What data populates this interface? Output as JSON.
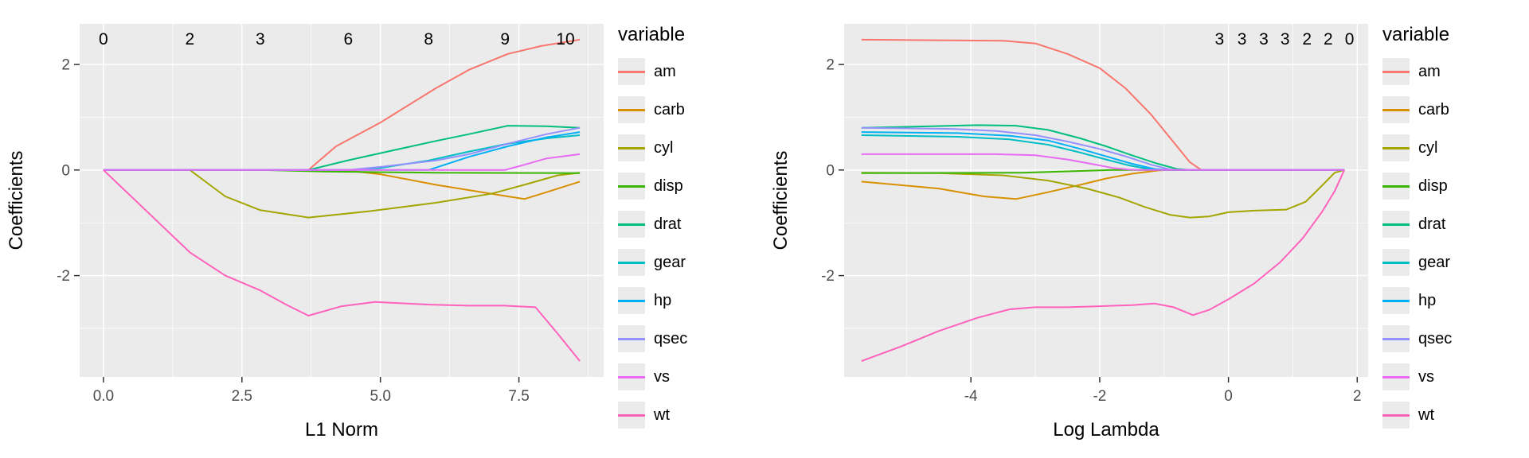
{
  "theme": {
    "panel_bg": "#EBEBEB",
    "grid_major": "#FFFFFF",
    "grid_minor": "#FFFFFF",
    "axis_text": "#4D4D4D",
    "tick_mark": "#333333",
    "title_text": "#000000",
    "legend_key_bg": "#EBEBEB"
  },
  "chart_data": [
    {
      "type": "line",
      "title": "",
      "xlabel": "L1 Norm",
      "ylabel": "Coefficients",
      "xlim": [
        -0.43,
        9.03
      ],
      "ylim": [
        -3.92,
        2.77
      ],
      "xticks": {
        "values": [
          0,
          2.5,
          5,
          7.5
        ],
        "labels": [
          "0.0",
          "2.5",
          "5.0",
          "7.5"
        ]
      },
      "yticks": {
        "values": [
          -2,
          0,
          2
        ],
        "labels": [
          "-2",
          "0",
          "2"
        ]
      },
      "top_labels": [
        {
          "x": 0.0,
          "text": "0"
        },
        {
          "x": 1.56,
          "text": "2"
        },
        {
          "x": 2.83,
          "text": "3"
        },
        {
          "x": 4.42,
          "text": "6"
        },
        {
          "x": 5.87,
          "text": "8"
        },
        {
          "x": 7.25,
          "text": "9"
        },
        {
          "x": 8.34,
          "text": "10"
        }
      ],
      "legend_title": "variable",
      "series": [
        {
          "name": "am",
          "color": "#F8766D",
          "x": [
            0,
            3.7,
            4.2,
            5,
            6,
            6.6,
            7.3,
            7.9,
            8.6
          ],
          "y": [
            0,
            0,
            0.45,
            0.9,
            1.55,
            1.9,
            2.2,
            2.35,
            2.47
          ]
        },
        {
          "name": "carb",
          "color": "#D89000",
          "x": [
            0,
            4.3,
            5,
            6,
            6.6,
            7.3,
            7.6,
            8.0,
            8.6
          ],
          "y": [
            0,
            0,
            -0.08,
            -0.28,
            -0.38,
            -0.5,
            -0.55,
            -0.42,
            -0.22
          ]
        },
        {
          "name": "cyl",
          "color": "#A3A500",
          "x": [
            0,
            1.56,
            2.2,
            2.83,
            3.7,
            4.8,
            6,
            7,
            7.6,
            8.2,
            8.6
          ],
          "y": [
            0,
            0,
            -0.5,
            -0.76,
            -0.9,
            -0.78,
            -0.62,
            -0.45,
            -0.28,
            -0.1,
            -0.05
          ]
        },
        {
          "name": "disp",
          "color": "#39B600",
          "x": [
            0,
            2.83,
            4,
            6,
            8.6
          ],
          "y": [
            0,
            0,
            -0.03,
            -0.05,
            -0.06
          ]
        },
        {
          "name": "drat",
          "color": "#00BF7D",
          "x": [
            0,
            3.7,
            4.4,
            5,
            6,
            6.6,
            7.3,
            8.0,
            8.6
          ],
          "y": [
            0,
            0,
            0.18,
            0.32,
            0.55,
            0.68,
            0.84,
            0.83,
            0.8
          ]
        },
        {
          "name": "gear",
          "color": "#00BFC4",
          "x": [
            0,
            4.42,
            5,
            5.87,
            6.6,
            7.3,
            8.0,
            8.6
          ],
          "y": [
            0,
            0,
            0.04,
            0.18,
            0.35,
            0.5,
            0.6,
            0.66
          ]
        },
        {
          "name": "hp",
          "color": "#00B0F6",
          "x": [
            0,
            5.87,
            6.6,
            7.3,
            8.0,
            8.6
          ],
          "y": [
            0,
            0,
            0.25,
            0.45,
            0.62,
            0.72
          ]
        },
        {
          "name": "qsec",
          "color": "#9590FF",
          "x": [
            0,
            4.42,
            5,
            6,
            6.6,
            7.3,
            8.0,
            8.6
          ],
          "y": [
            0,
            0,
            0.06,
            0.18,
            0.3,
            0.5,
            0.68,
            0.8
          ]
        },
        {
          "name": "vs",
          "color": "#E76BF3",
          "x": [
            0,
            7.25,
            7.6,
            8.0,
            8.6
          ],
          "y": [
            0,
            0,
            0.1,
            0.22,
            0.3
          ]
        },
        {
          "name": "wt",
          "color": "#FF62BC",
          "x": [
            0,
            0.5,
            1.0,
            1.56,
            2.2,
            2.83,
            3.3,
            3.7,
            4.3,
            4.9,
            5.9,
            6.6,
            7.25,
            7.8,
            8.2,
            8.6
          ],
          "y": [
            0,
            -0.5,
            -1.0,
            -1.56,
            -2.0,
            -2.28,
            -2.55,
            -2.76,
            -2.58,
            -2.5,
            -2.55,
            -2.57,
            -2.57,
            -2.6,
            -3.1,
            -3.62
          ]
        }
      ]
    },
    {
      "type": "line",
      "title": "",
      "xlabel": "Log Lambda",
      "ylabel": "Coefficients",
      "xlim": [
        -5.97,
        2.17
      ],
      "ylim": [
        -3.92,
        2.77
      ],
      "xticks": {
        "values": [
          -4,
          -2,
          0,
          2
        ],
        "labels": [
          "-4",
          "-2",
          "0",
          "2"
        ]
      },
      "yticks": {
        "values": [
          -2,
          0,
          2
        ],
        "labels": [
          "-2",
          "0",
          "2"
        ]
      },
      "top_labels": [
        {
          "x": -0.14,
          "text": "3"
        },
        {
          "x": 0.21,
          "text": "3"
        },
        {
          "x": 0.55,
          "text": "3"
        },
        {
          "x": 0.88,
          "text": "3"
        },
        {
          "x": 1.22,
          "text": "2"
        },
        {
          "x": 1.55,
          "text": "2"
        },
        {
          "x": 1.88,
          "text": "0"
        }
      ],
      "legend_title": "variable",
      "series": [
        {
          "name": "am",
          "color": "#F8766D",
          "x": [
            -5.7,
            -3.5,
            -3,
            -2.5,
            -2,
            -1.6,
            -1.2,
            -0.9,
            -0.6,
            -0.42,
            1.8
          ],
          "y": [
            2.47,
            2.45,
            2.4,
            2.2,
            1.93,
            1.55,
            1.05,
            0.6,
            0.15,
            0,
            0
          ]
        },
        {
          "name": "carb",
          "color": "#D89000",
          "x": [
            -5.7,
            -4.5,
            -3.8,
            -3.3,
            -2.8,
            -2.3,
            -1.9,
            -1.5,
            -1.1,
            -0.95,
            1.8
          ],
          "y": [
            -0.22,
            -0.35,
            -0.5,
            -0.55,
            -0.42,
            -0.28,
            -0.16,
            -0.07,
            -0.01,
            0,
            0
          ]
        },
        {
          "name": "cyl",
          "color": "#A3A500",
          "x": [
            -5.7,
            -4.5,
            -3.5,
            -2.8,
            -2.2,
            -1.7,
            -1.3,
            -0.9,
            -0.6,
            -0.3,
            0,
            0.4,
            0.9,
            1.2,
            1.45,
            1.65,
            1.8
          ],
          "y": [
            -0.05,
            -0.06,
            -0.1,
            -0.2,
            -0.35,
            -0.52,
            -0.7,
            -0.85,
            -0.9,
            -0.88,
            -0.8,
            -0.77,
            -0.75,
            -0.6,
            -0.3,
            -0.05,
            0
          ]
        },
        {
          "name": "disp",
          "color": "#39B600",
          "x": [
            -5.7,
            -3.2,
            -2.6,
            -2.1,
            -1.8,
            1.8
          ],
          "y": [
            -0.06,
            -0.05,
            -0.03,
            -0.01,
            0,
            0
          ]
        },
        {
          "name": "drat",
          "color": "#00BF7D",
          "x": [
            -5.7,
            -4.6,
            -3.9,
            -3.3,
            -2.8,
            -2.3,
            -1.9,
            -1.5,
            -1.1,
            -0.8,
            -0.6,
            1.8
          ],
          "y": [
            0.8,
            0.83,
            0.85,
            0.84,
            0.76,
            0.6,
            0.45,
            0.28,
            0.12,
            0.02,
            0,
            0
          ]
        },
        {
          "name": "gear",
          "color": "#00BFC4",
          "x": [
            -5.7,
            -4.2,
            -3.4,
            -2.8,
            -2.3,
            -1.9,
            -1.55,
            -1.25,
            -1.05,
            1.8
          ],
          "y": [
            0.66,
            0.63,
            0.58,
            0.48,
            0.33,
            0.2,
            0.09,
            0.02,
            0,
            0
          ]
        },
        {
          "name": "hp",
          "color": "#00B0F6",
          "x": [
            -5.7,
            -4.2,
            -3.4,
            -2.8,
            -2.3,
            -1.9,
            -1.5,
            -1.15,
            -0.95,
            1.8
          ],
          "y": [
            0.72,
            0.7,
            0.65,
            0.56,
            0.4,
            0.26,
            0.12,
            0.02,
            0,
            0
          ]
        },
        {
          "name": "qsec",
          "color": "#9590FF",
          "x": [
            -5.7,
            -4.3,
            -3.6,
            -3,
            -2.5,
            -2,
            -1.6,
            -1.2,
            -0.9,
            -0.75,
            1.8
          ],
          "y": [
            0.8,
            0.78,
            0.74,
            0.66,
            0.54,
            0.4,
            0.26,
            0.1,
            0.01,
            0,
            0
          ]
        },
        {
          "name": "vs",
          "color": "#E76BF3",
          "x": [
            -5.7,
            -3.6,
            -3,
            -2.5,
            -2.1,
            -1.8,
            -1.55,
            -1.4,
            1.8
          ],
          "y": [
            0.3,
            0.3,
            0.28,
            0.2,
            0.11,
            0.04,
            0.01,
            0,
            0
          ]
        },
        {
          "name": "wt",
          "color": "#FF62BC",
          "x": [
            -5.7,
            -5.1,
            -4.5,
            -3.9,
            -3.4,
            -3.0,
            -2.5,
            -2,
            -1.5,
            -1.15,
            -0.85,
            -0.55,
            -0.3,
            0,
            0.4,
            0.8,
            1.15,
            1.45,
            1.65,
            1.8
          ],
          "y": [
            -3.62,
            -3.35,
            -3.05,
            -2.8,
            -2.64,
            -2.6,
            -2.6,
            -2.58,
            -2.56,
            -2.53,
            -2.6,
            -2.75,
            -2.65,
            -2.45,
            -2.15,
            -1.75,
            -1.3,
            -0.8,
            -0.4,
            0
          ]
        }
      ]
    }
  ]
}
